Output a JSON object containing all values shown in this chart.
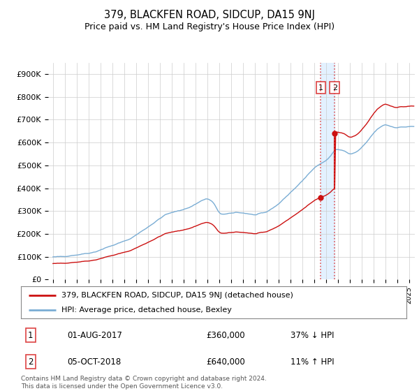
{
  "title": "379, BLACKFEN ROAD, SIDCUP, DA15 9NJ",
  "subtitle": "Price paid vs. HM Land Registry's House Price Index (HPI)",
  "ylabel_ticks": [
    "£0",
    "£100K",
    "£200K",
    "£300K",
    "£400K",
    "£500K",
    "£600K",
    "£700K",
    "£800K",
    "£900K"
  ],
  "ytick_values": [
    0,
    100000,
    200000,
    300000,
    400000,
    500000,
    600000,
    700000,
    800000,
    900000
  ],
  "ylim": [
    0,
    950000
  ],
  "hpi_color": "#7aadd4",
  "price_color": "#cc1111",
  "vline_color": "#dd4444",
  "shade_color": "#ddeeff",
  "background_color": "#ffffff",
  "grid_color": "#cccccc",
  "transaction1_year": 2017,
  "transaction1_month": 8,
  "transaction1_price": 360000,
  "transaction2_year": 2018,
  "transaction2_month": 10,
  "transaction2_price": 640000,
  "legend_label1": "379, BLACKFEN ROAD, SIDCUP, DA15 9NJ (detached house)",
  "legend_label2": "HPI: Average price, detached house, Bexley",
  "note1_label": "1",
  "note1_date": "01-AUG-2017",
  "note1_price": "£360,000",
  "note1_rel": "37% ↓ HPI",
  "note2_label": "2",
  "note2_date": "05-OCT-2018",
  "note2_price": "£640,000",
  "note2_rel": "11% ↑ HPI",
  "footer": "Contains HM Land Registry data © Crown copyright and database right 2024.\nThis data is licensed under the Open Government Licence v3.0."
}
